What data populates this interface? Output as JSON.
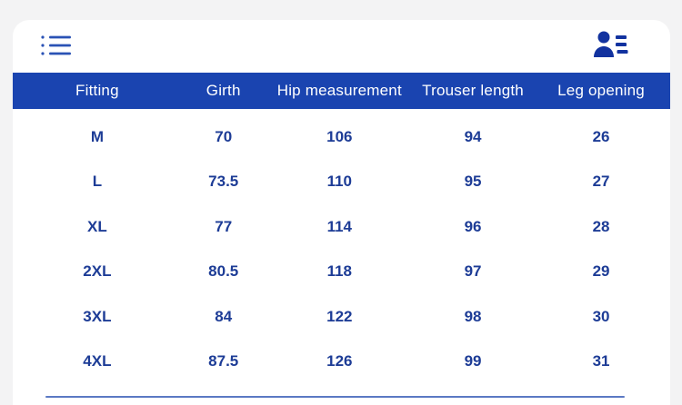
{
  "page": {
    "background_color": "#f3f3f4",
    "card_background_color": "#ffffff"
  },
  "toolbar": {
    "list_icon": "list-menu-icon",
    "list_icon_color": "#2a52b5",
    "user_list_icon": "user-list-icon",
    "user_list_icon_color": "#12329f"
  },
  "size_chart": {
    "header_background_color": "#1a44b0",
    "header_text_color": "#ffffff",
    "body_text_color": "#1d3c96",
    "divider_color": "#5b79c4",
    "columns": [
      "Fitting",
      "Girth",
      "Hip measurement",
      "Trouser length",
      "Leg opening"
    ],
    "rows": [
      {
        "fitting": "M",
        "girth": "70",
        "hip": "106",
        "trouser_length": "94",
        "leg_opening": "26"
      },
      {
        "fitting": "L",
        "girth": "73.5",
        "hip": "110",
        "trouser_length": "95",
        "leg_opening": "27"
      },
      {
        "fitting": "XL",
        "girth": "77",
        "hip": "114",
        "trouser_length": "96",
        "leg_opening": "28"
      },
      {
        "fitting": "2XL",
        "girth": "80.5",
        "hip": "118",
        "trouser_length": "97",
        "leg_opening": "29"
      },
      {
        "fitting": "3XL",
        "girth": "84",
        "hip": "122",
        "trouser_length": "98",
        "leg_opening": "30"
      },
      {
        "fitting": "4XL",
        "girth": "87.5",
        "hip": "126",
        "trouser_length": "99",
        "leg_opening": "31"
      }
    ]
  }
}
